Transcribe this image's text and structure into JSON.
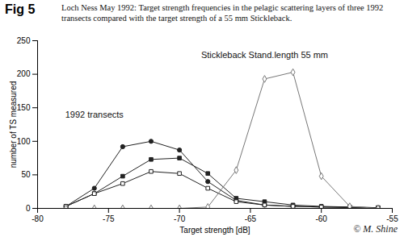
{
  "chart_data": {
    "type": "line",
    "title": "Fig 5",
    "subtitle": "Loch Ness May 1992: Target strength frequencies in the pelagic scattering layers of three 1992 transects compared with the target strength of a 55 mm Stickleback.",
    "credit": "© M. Shine",
    "x_label": "Target strength [dB]",
    "y_label": "number of TS measured",
    "x": [
      -78,
      -76,
      -74,
      -72,
      -70,
      -68,
      -66,
      -64,
      -62,
      -60,
      -58,
      -56
    ],
    "series": [
      {
        "color": "#222222",
        "marker": "circle",
        "values": [
          3,
          30,
          92,
          100,
          87,
          40,
          12,
          5,
          3,
          2,
          2,
          1
        ]
      },
      {
        "color": "#222222",
        "marker": "square",
        "values": [
          3,
          22,
          48,
          73,
          75,
          52,
          15,
          10,
          5,
          3,
          2,
          1
        ]
      },
      {
        "color": "#222222",
        "marker": "square_open",
        "values": [
          3,
          22,
          37,
          55,
          52,
          30,
          10,
          5,
          3,
          2,
          1,
          1
        ]
      },
      {
        "color": "#777777",
        "marker": "diamond_open",
        "values": [
          0,
          0,
          0,
          0,
          0,
          2,
          57,
          193,
          203,
          48,
          3,
          0
        ]
      }
    ],
    "annotations": [
      {
        "text": "1992 transects",
        "x": -76,
        "y": 140
      },
      {
        "text": "Stickleback Stand.length 55 mm",
        "x": -64,
        "y": 228
      }
    ],
    "xlim": [
      -80,
      -55
    ],
    "xticks": [
      -80,
      -75,
      -70,
      -65,
      -60,
      -55
    ],
    "ylim": [
      0,
      250
    ],
    "yticks": [
      0,
      50,
      100,
      150,
      200,
      250
    ],
    "grid": false
  }
}
